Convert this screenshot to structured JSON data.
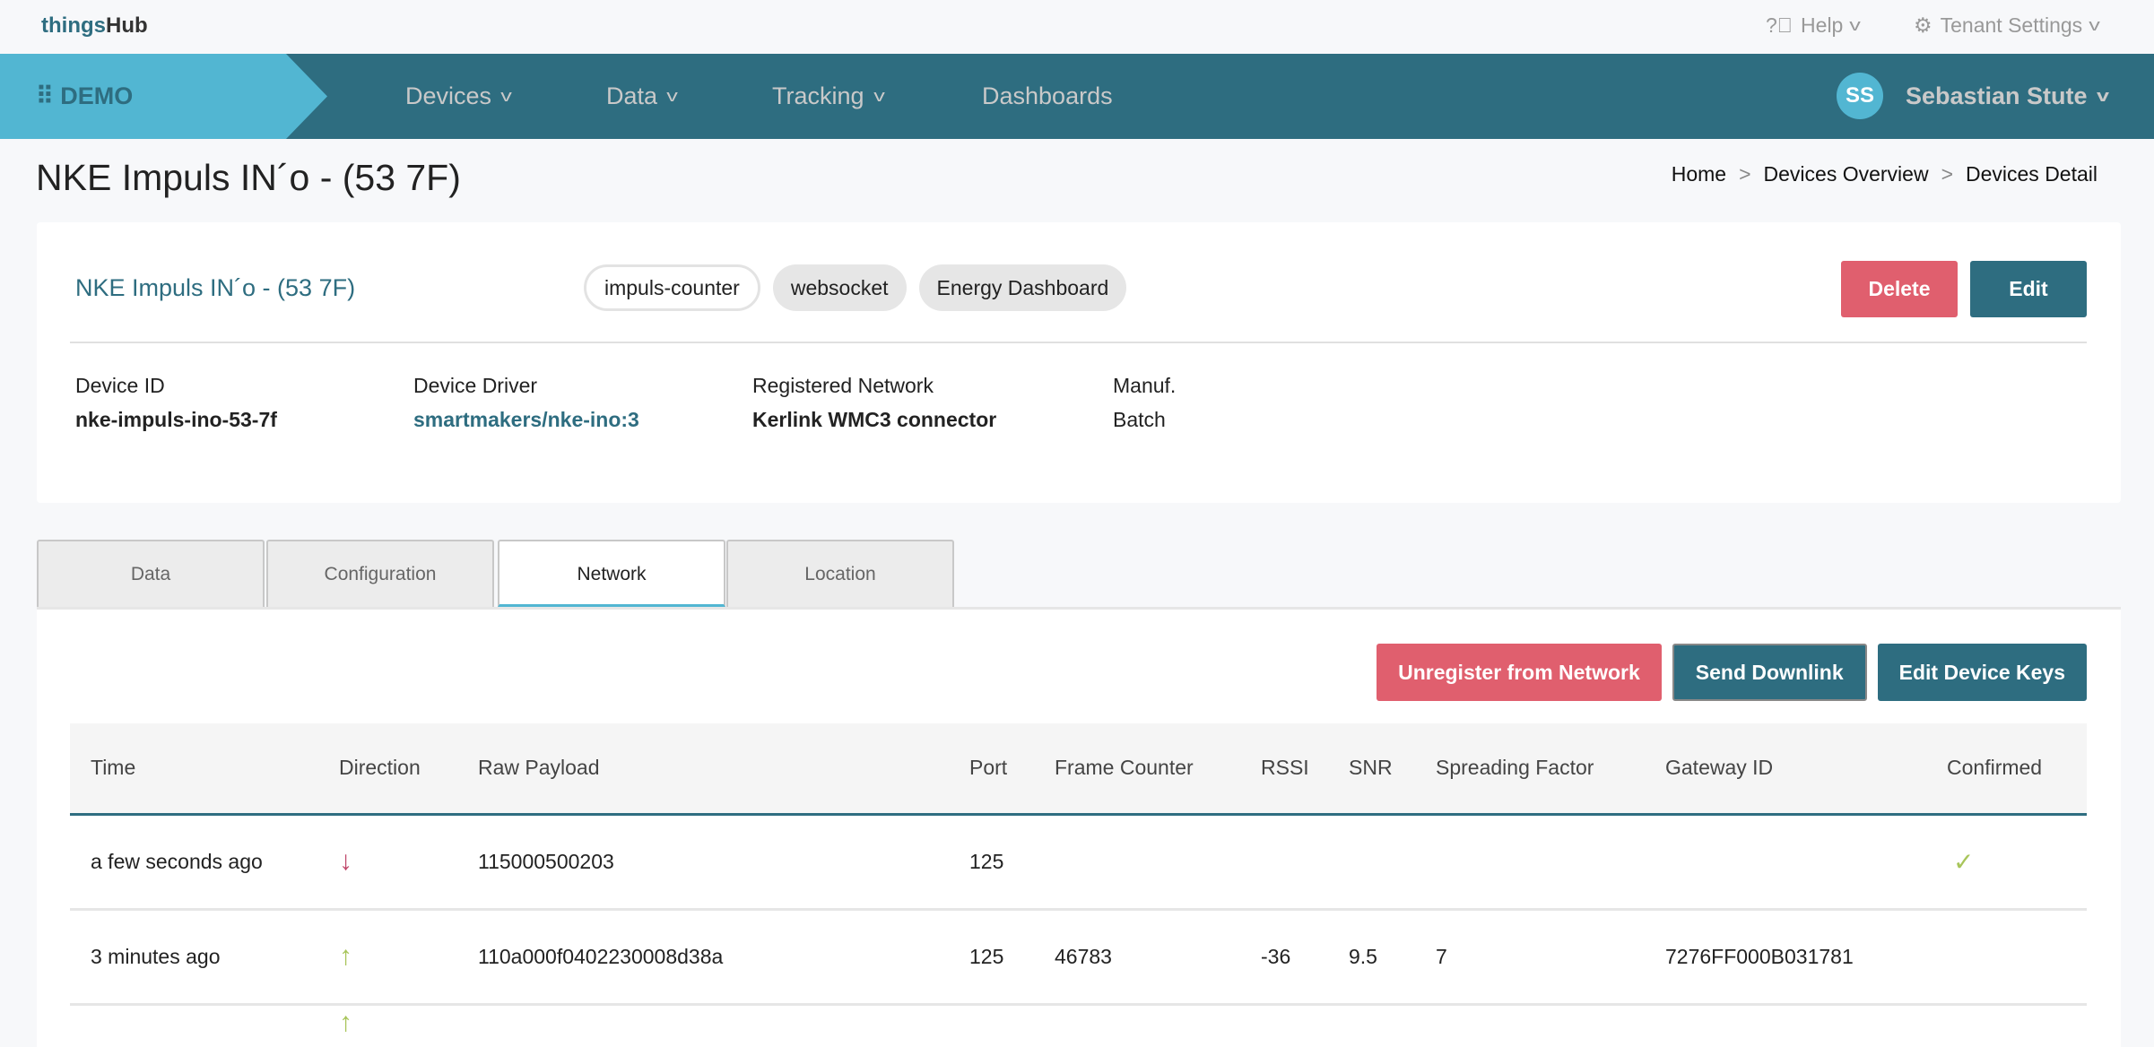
{
  "topbar": {
    "logo_a": "things",
    "logo_b": "Hub",
    "help": "Help",
    "tenant": "Tenant Settings"
  },
  "nav": {
    "brand": "DEMO",
    "items": [
      {
        "label": "Devices"
      },
      {
        "label": "Data"
      },
      {
        "label": "Tracking"
      },
      {
        "label": "Dashboards"
      }
    ],
    "user_initials": "SS",
    "user_name": "Sebastian Stute"
  },
  "page": {
    "title": "NKE Impuls IN´o - (53 7F)",
    "breadcrumb": [
      "Home",
      "Devices Overview",
      "Devices Detail"
    ],
    "sep": ">"
  },
  "card": {
    "name": "NKE Impuls IN´o - (53 7F)",
    "tags": [
      "impuls-counter",
      "websocket",
      "Energy Dashboard"
    ],
    "delete": "Delete",
    "edit": "Edit",
    "fields": [
      {
        "label": "Device ID",
        "value": "nke-impuls-ino-53-7f"
      },
      {
        "label": "Device Driver",
        "value": "smartmakers/nke-ino:3"
      },
      {
        "label": "Registered Network",
        "value": "Kerlink WMC3 connector"
      },
      {
        "label": "Manuf.",
        "value": "Batch"
      }
    ]
  },
  "tabs": [
    "Data",
    "Configuration",
    "Network",
    "Location"
  ],
  "active_tab": "Network",
  "actions": {
    "unregister": "Unregister from Network",
    "downlink": "Send Downlink",
    "keys": "Edit Device Keys"
  },
  "table": {
    "headers": [
      "Time",
      "Direction",
      "Raw Payload",
      "Port",
      "Frame Counter",
      "RSSI",
      "SNR",
      "Spreading Factor",
      "Gateway ID",
      "Confirmed"
    ],
    "rows": [
      {
        "time": "a few seconds ago",
        "direction": "down",
        "payload": "115000500203",
        "port": "125",
        "fc": "",
        "rssi": "",
        "snr": "",
        "sf": "",
        "gw": "",
        "confirmed": true
      },
      {
        "time": "3 minutes ago",
        "direction": "up",
        "payload": "110a000f0402230008d38a",
        "port": "125",
        "fc": "46783",
        "rssi": "-36",
        "snr": "9.5",
        "sf": "7",
        "gw": "7276FF000B031781",
        "confirmed": false
      },
      {
        "direction": "up"
      }
    ]
  },
  "colors": {
    "primary": "#2e6d80",
    "accent": "#52b6d2",
    "danger": "#e05f6e",
    "uplink": "#a8c55a",
    "downlink": "#c0486b"
  }
}
